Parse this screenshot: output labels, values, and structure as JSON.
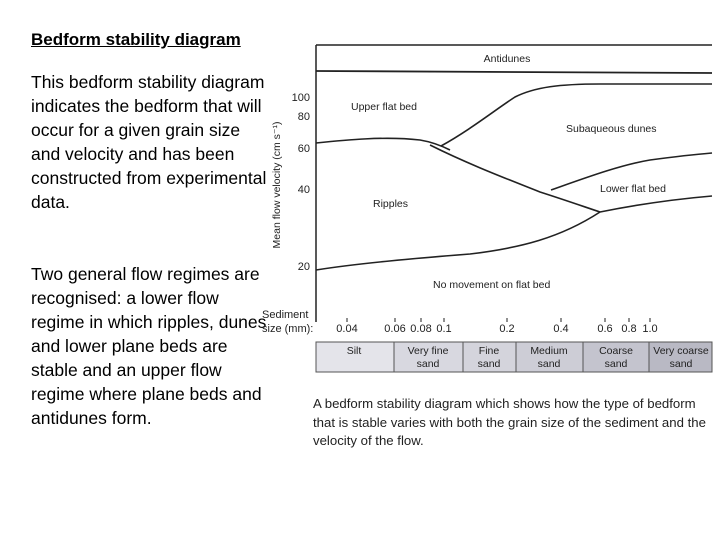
{
  "title": "Bedform stability diagram",
  "paragraphs": [
    "This bedform stability diagram indicates the bedform that will occur for a given grain size and velocity and has been constructed from experimental data.",
    "Two general flow regimes are recognised: a lower flow regime in which ripples, dunes and lower plane beds are stable and an upper flow regime where plane beds and antidunes form."
  ],
  "diagram": {
    "y_axis_label": "Mean flow velocity (cm s⁻¹)",
    "y_ticks": [
      "100",
      "80",
      "60",
      "40",
      "20"
    ],
    "x_axis_label_line1": "Sediment",
    "x_axis_label_line2": "size (mm):",
    "x_ticks": [
      "0.04",
      "0.06",
      "0.08",
      "0.1",
      "0.2",
      "0.4",
      "0.6",
      "0.8",
      "1.0"
    ],
    "regions": {
      "antidunes": "Antidunes",
      "upper_flat_bed": "Upper flat bed",
      "subaqueous_dunes": "Subaqueous dunes",
      "lower_flat_bed": "Lower flat bed",
      "ripples": "Ripples",
      "no_movement": "No movement on flat bed"
    },
    "grain_classes": [
      {
        "line1": "Silt",
        "line2": ""
      },
      {
        "line1": "Very fine",
        "line2": "sand"
      },
      {
        "line1": "Fine",
        "line2": "sand"
      },
      {
        "line1": "Medium",
        "line2": "sand"
      },
      {
        "line1": "Coarse",
        "line2": "sand"
      },
      {
        "line1": "Very coarse",
        "line2": "sand"
      }
    ],
    "colors": {
      "scale_bar_light": "#e4e4ea",
      "scale_bar_mid": "#d0d0d8",
      "scale_bar_dark": "#b9b9c4",
      "line": "#222222"
    }
  },
  "caption": "A bedform stability diagram which shows how the type of bedform that is stable varies with both the grain size of the sediment and the velocity of the flow."
}
